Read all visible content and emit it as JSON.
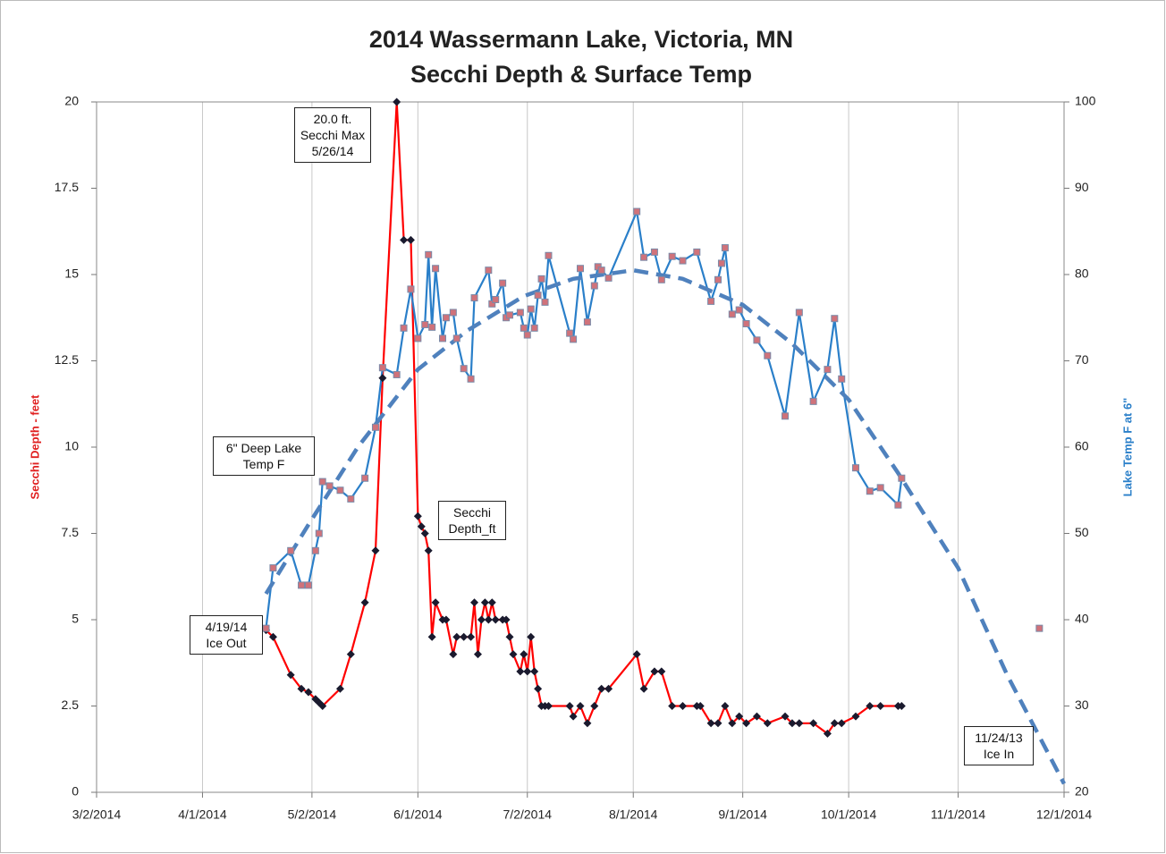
{
  "chart_data": {
    "type": "line",
    "title": "2014 Wassermann Lake, Victoria, MN",
    "subtitle": "Secchi Depth & Surface Temp",
    "y_label": "Secchi Depth - feet",
    "y2_label": "Lake Temp F at 6\"",
    "xlim": [
      "3/2/2014",
      "12/1/2014"
    ],
    "xticks": [
      "3/2/2014",
      "4/1/2014",
      "5/2/2014",
      "6/1/2014",
      "7/2/2014",
      "8/1/2014",
      "9/1/2014",
      "10/1/2014",
      "11/1/2014",
      "12/1/2014"
    ],
    "ylim": [
      0,
      20
    ],
    "yticks": [
      0,
      2.5,
      5,
      7.5,
      10,
      12.5,
      15,
      17.5,
      20
    ],
    "y2lim": [
      20,
      100
    ],
    "y2ticks": [
      20,
      30,
      40,
      50,
      60,
      70,
      80,
      90,
      100
    ],
    "grid": "x",
    "series": [
      {
        "name": "Secchi Depth_ft",
        "color": "#ff0000",
        "marker": "diamond",
        "marker_color": "#1a1a2e",
        "x": [
          "4/19/2014",
          "4/21/2014",
          "4/26/2014",
          "4/29/2014",
          "5/1/2014",
          "5/3/2014",
          "5/4/2014",
          "5/5/2014",
          "5/10/2014",
          "5/13/2014",
          "5/17/2014",
          "5/20/2014",
          "5/22/2014",
          "5/26/2014",
          "5/28/2014",
          "5/30/2014",
          "6/1/2014",
          "6/2/2014",
          "6/3/2014",
          "6/4/2014",
          "6/5/2014",
          "6/6/2014",
          "6/8/2014",
          "6/9/2014",
          "6/11/2014",
          "6/12/2014",
          "6/14/2014",
          "6/16/2014",
          "6/17/2014",
          "6/18/2014",
          "6/19/2014",
          "6/20/2014",
          "6/21/2014",
          "6/22/2014",
          "6/23/2014",
          "6/25/2014",
          "6/26/2014",
          "6/27/2014",
          "6/28/2014",
          "6/30/2014",
          "7/1/2014",
          "7/2/2014",
          "7/3/2014",
          "7/4/2014",
          "7/5/2014",
          "7/6/2014",
          "7/7/2014",
          "7/8/2014",
          "7/14/2014",
          "7/15/2014",
          "7/17/2014",
          "7/19/2014",
          "7/21/2014",
          "7/23/2014",
          "7/25/2014",
          "8/2/2014",
          "8/4/2014",
          "8/7/2014",
          "8/9/2014",
          "8/12/2014",
          "8/15/2014",
          "8/19/2014",
          "8/20/2014",
          "8/23/2014",
          "8/25/2014",
          "8/27/2014",
          "8/29/2014",
          "8/31/2014",
          "9/2/2014",
          "9/5/2014",
          "9/8/2014",
          "9/13/2014",
          "9/15/2014",
          "9/17/2014",
          "9/21/2014",
          "9/25/2014",
          "9/27/2014",
          "9/29/2014",
          "10/3/2014",
          "10/7/2014",
          "10/10/2014",
          "10/15/2014",
          "10/16/2014"
        ],
        "values": [
          4.7,
          4.5,
          3.4,
          3.0,
          2.9,
          2.7,
          2.6,
          2.5,
          3.0,
          4.0,
          5.5,
          7.0,
          12.0,
          20.0,
          16.0,
          16.0,
          8.0,
          7.7,
          7.5,
          7.0,
          4.5,
          5.5,
          5.0,
          5.0,
          4.0,
          4.5,
          4.5,
          4.5,
          5.5,
          4.0,
          5.0,
          5.5,
          5.0,
          5.5,
          5.0,
          5.0,
          5.0,
          4.5,
          4.0,
          3.5,
          4.0,
          3.5,
          4.5,
          3.5,
          3.0,
          2.5,
          2.5,
          2.5,
          2.5,
          2.2,
          2.5,
          2.0,
          2.5,
          3.0,
          3.0,
          4.0,
          3.0,
          3.5,
          3.5,
          2.5,
          2.5,
          2.5,
          2.5,
          2.0,
          2.0,
          2.5,
          2.0,
          2.2,
          2.0,
          2.2,
          2.0,
          2.2,
          2.0,
          2.0,
          2.0,
          1.7,
          2.0,
          2.0,
          2.2,
          2.5,
          2.5,
          2.5,
          2.5
        ]
      },
      {
        "name": "6\" Deep Lake Temp F",
        "color": "#2a7fc9",
        "axis": "y2",
        "marker": "square",
        "marker_color": "#d0727a",
        "x": [
          "4/19/2014",
          "4/21/2014",
          "4/26/2014",
          "4/29/2014",
          "5/1/2014",
          "5/3/2014",
          "5/4/2014",
          "5/5/2014",
          "5/7/2014",
          "5/10/2014",
          "5/13/2014",
          "5/17/2014",
          "5/20/2014",
          "5/22/2014",
          "5/26/2014",
          "5/28/2014",
          "5/30/2014",
          "6/1/2014",
          "6/3/2014",
          "6/4/2014",
          "6/5/2014",
          "6/6/2014",
          "6/8/2014",
          "6/9/2014",
          "6/11/2014",
          "6/12/2014",
          "6/14/2014",
          "6/16/2014",
          "6/17/2014",
          "6/21/2014",
          "6/22/2014",
          "6/23/2014",
          "6/25/2014",
          "6/26/2014",
          "6/27/2014",
          "6/30/2014",
          "7/1/2014",
          "7/2/2014",
          "7/3/2014",
          "7/4/2014",
          "7/5/2014",
          "7/6/2014",
          "7/7/2014",
          "7/8/2014",
          "7/14/2014",
          "7/15/2014",
          "7/17/2014",
          "7/19/2014",
          "7/21/2014",
          "7/22/2014",
          "7/23/2014",
          "7/25/2014",
          "8/2/2014",
          "8/4/2014",
          "8/7/2014",
          "8/9/2014",
          "8/12/2014",
          "8/15/2014",
          "8/19/2014",
          "8/23/2014",
          "8/25/2014",
          "8/26/2014",
          "8/27/2014",
          "8/29/2014",
          "8/31/2014",
          "9/2/2014",
          "9/5/2014",
          "9/8/2014",
          "9/13/2014",
          "9/17/2014",
          "9/21/2014",
          "9/25/2014",
          "9/27/2014",
          "9/29/2014",
          "10/3/2014",
          "10/7/2014",
          "10/10/2014",
          "10/15/2014",
          "10/16/2014",
          "11/1/2014",
          "11/24/2014"
        ],
        "values": [
          39,
          46,
          48,
          44,
          44,
          48,
          50,
          56,
          55.5,
          55,
          54,
          56.4,
          62.3,
          69.2,
          68.4,
          73.8,
          78.3,
          72.6,
          74.2,
          82.3,
          73.9,
          80.7,
          72.6,
          75,
          75.6,
          72.6,
          69.1,
          67.9,
          77.3,
          80.5,
          76.6,
          77.1,
          79,
          75,
          75.3,
          75.6,
          73.8,
          73,
          76,
          73.8,
          77.6,
          79.5,
          76.8,
          82.2,
          73.2,
          72.5,
          80.7,
          74.5,
          78.7,
          80.9,
          80.5,
          79.6,
          87.3,
          82,
          82.6,
          79.4,
          82.1,
          81.6,
          82.6,
          76.9,
          79.4,
          81.3,
          83.1,
          75.4,
          75.9,
          74.3,
          72.4,
          70.6,
          63.6,
          75.6,
          65.3,
          69,
          74.9,
          67.9,
          57.6,
          54.9,
          55.3,
          53.3,
          56.4,
          null,
          39
        ]
      },
      {
        "color": "#4f81bd",
        "axis": "y2",
        "dashed": true,
        "x": [
          "4/19/2014",
          "5/1/2014",
          "5/15/2014",
          "6/1/2014",
          "6/15/2014",
          "7/1/2014",
          "7/15/2014",
          "8/1/2014",
          "8/15/2014",
          "9/1/2014",
          "9/15/2014",
          "10/1/2014",
          "10/15/2014",
          "11/1/2014",
          "11/15/2014",
          "12/1/2014"
        ],
        "values": [
          43,
          51,
          60,
          69,
          73.5,
          77.5,
          79.5,
          80.5,
          79.5,
          76.5,
          72,
          65.5,
          57,
          46,
          33.5,
          21
        ]
      }
    ],
    "annotations": [
      {
        "lines": [
          "20.0 ft.",
          "Secchi Max",
          "5/26/14"
        ]
      },
      {
        "lines": [
          "4/19/14",
          "Ice Out"
        ]
      },
      {
        "lines": [
          "11/24/13",
          "Ice In"
        ]
      }
    ]
  }
}
